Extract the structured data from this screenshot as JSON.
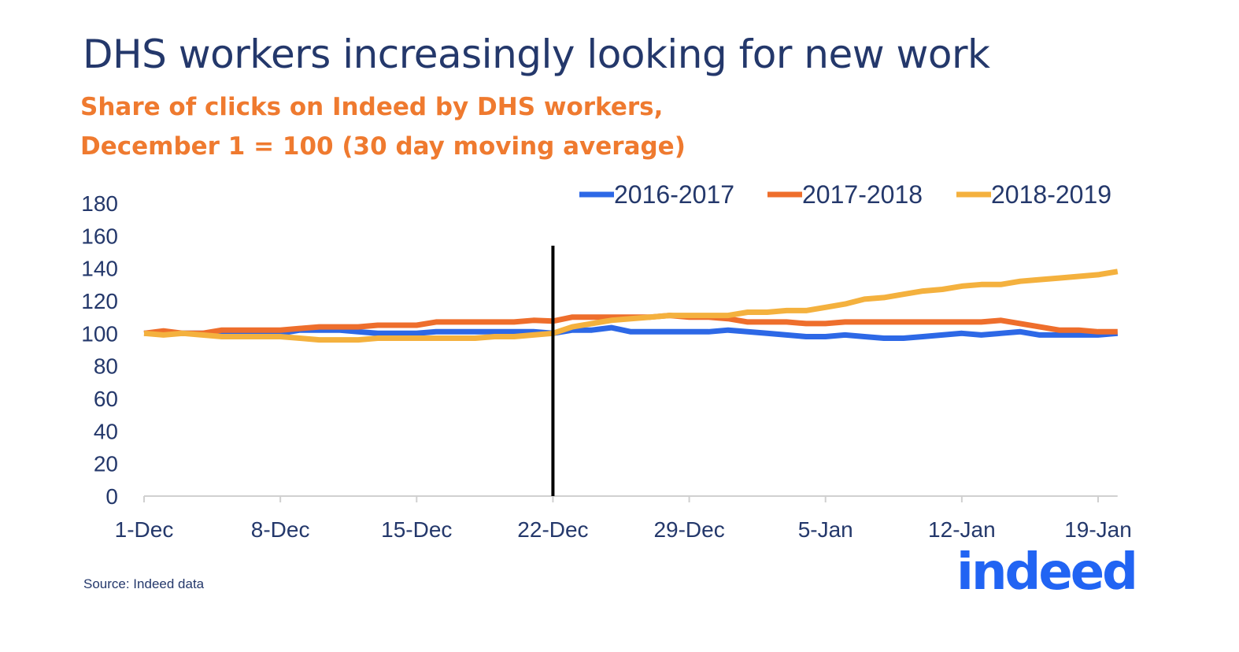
{
  "chart_data": {
    "type": "line",
    "title": "DHS workers increasingly looking for new work",
    "subtitle": [
      "Share of clicks on Indeed by DHS workers,",
      "December 1 = 100 (30 day moving average)"
    ],
    "xlabel": "",
    "ylabel": "",
    "ylim": [
      0,
      180
    ],
    "yticks": [
      "0",
      "20",
      "40",
      "60",
      "80",
      "100",
      "120",
      "140",
      "160",
      "180"
    ],
    "xticks": [
      "1-Dec",
      "8-Dec",
      "15-Dec",
      "22-Dec",
      "29-Dec",
      "5-Jan",
      "12-Jan",
      "19-Jan"
    ],
    "x_start": "1-Dec",
    "x_end": "20-Jan",
    "marker_line_at": "22-Dec",
    "grid": false,
    "legend_position": "top-right",
    "series": [
      {
        "name": "2016-2017",
        "color": "#2d68e6",
        "values": [
          100,
          100,
          100,
          100,
          100,
          100,
          100,
          100,
          102,
          102,
          102,
          101,
          100,
          100,
          100,
          101,
          101,
          101,
          101,
          101,
          101,
          100,
          102,
          102,
          103.5,
          101,
          101,
          101,
          101,
          101,
          102,
          101,
          100,
          99,
          98,
          98,
          99,
          98,
          97,
          97,
          98,
          99,
          100,
          99,
          100,
          101,
          99,
          99,
          99,
          99,
          100
        ]
      },
      {
        "name": "2017-2018",
        "color": "#ee6e2c",
        "values": [
          100,
          101.5,
          100,
          100,
          102,
          102,
          102,
          102,
          103,
          104,
          104,
          104,
          105,
          105,
          105,
          107,
          107,
          107,
          107,
          107,
          108,
          107.5,
          110,
          110,
          110,
          110,
          110,
          111,
          110,
          110,
          109,
          107,
          107,
          107,
          106,
          106,
          107,
          107,
          107,
          107,
          107,
          107,
          107,
          107,
          108,
          106,
          104,
          102,
          102,
          101,
          101
        ]
      },
      {
        "name": "2018-2019",
        "color": "#f4b13e",
        "values": [
          100,
          99,
          100,
          99,
          98,
          98,
          98,
          98,
          97,
          96,
          96,
          96,
          97,
          97,
          97,
          97,
          97,
          97,
          98,
          98,
          99,
          100,
          104,
          106,
          108,
          109,
          110,
          111,
          111,
          111,
          111,
          113,
          113,
          114,
          114,
          116,
          118,
          121,
          122,
          124,
          126,
          127,
          129,
          130,
          130,
          132,
          133,
          134,
          135,
          136,
          138
        ]
      }
    ]
  },
  "source": "Source: Indeed data",
  "logo_text": "indeed"
}
